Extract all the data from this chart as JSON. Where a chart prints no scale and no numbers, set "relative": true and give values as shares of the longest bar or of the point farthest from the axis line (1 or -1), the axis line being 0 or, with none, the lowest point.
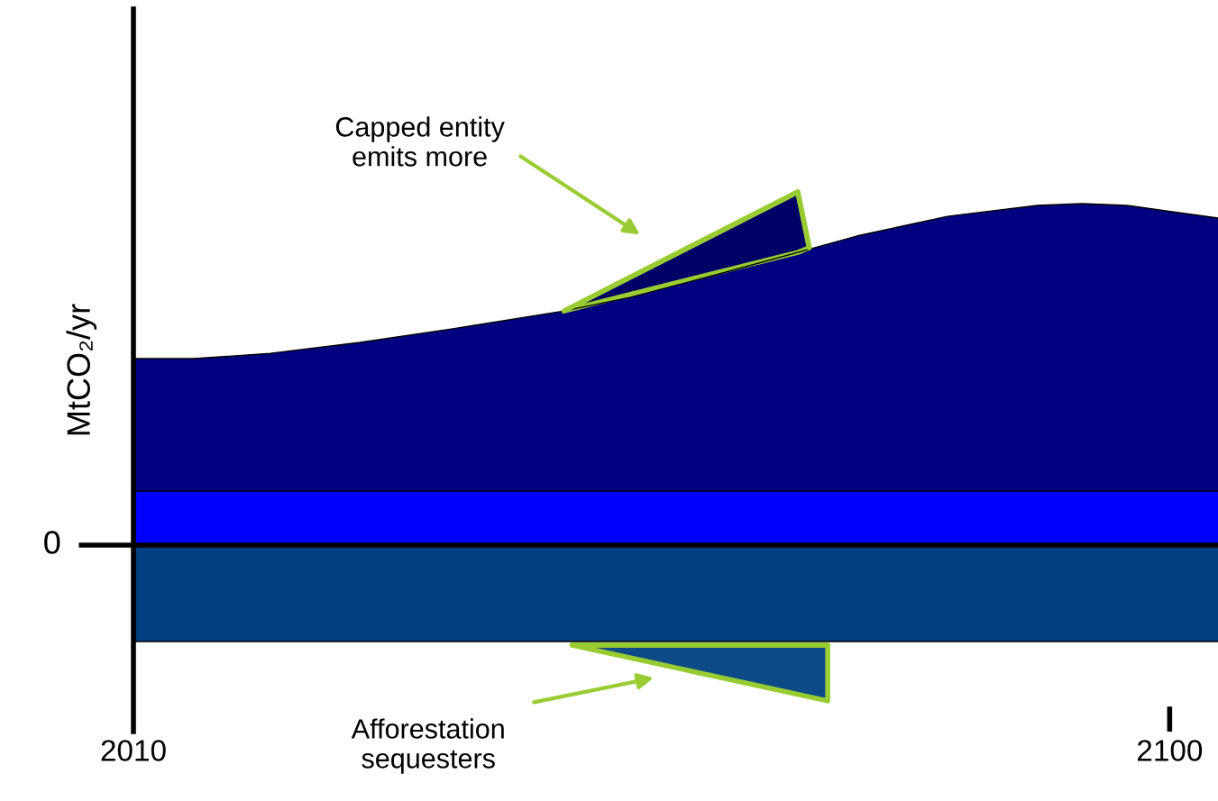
{
  "chart_data": {
    "type": "area",
    "relative": true,
    "ylabel": "MtCO₂/yr",
    "x": [
      2010,
      2015.2,
      2021.9,
      2029.7,
      2037.6,
      2047.4,
      2053.2,
      2061.1,
      2067.7,
      2072.8,
      2080.7,
      2088.5,
      2092.4,
      2096.3,
      2100.2,
      2104.2
    ],
    "xlim": [
      2010,
      2104.2
    ],
    "xticks": [
      2010,
      2100
    ],
    "series": [
      {
        "color": "#000080",
        "values": [
          0.528,
          0.528,
          0.543,
          0.574,
          0.612,
          0.663,
          0.702,
          0.77,
          0.829,
          0.875,
          0.931,
          0.962,
          0.967,
          0.962,
          0.944,
          0.926
        ]
      },
      {
        "color": "#0000ff",
        "values": [
          0.153,
          0.153,
          0.153,
          0.153,
          0.153,
          0.153,
          0.153,
          0.153,
          0.153,
          0.153,
          0.153,
          0.153,
          0.153,
          0.153,
          0.153,
          0.153
        ]
      },
      {
        "color": "#004080",
        "values": [
          -0.273,
          -0.273,
          -0.273,
          -0.273,
          -0.273,
          -0.273,
          -0.273,
          -0.273,
          -0.273,
          -0.273,
          -0.273,
          -0.273,
          -0.273,
          -0.273,
          -0.273,
          -0.273
        ]
      },
      {
        "type": "line",
        "color": "#99cc33",
        "x": [
          2047.4,
          2067.7,
          2068.7
        ],
        "values": [
          0.663,
          1.0,
          0.842
        ],
        "lower": [
          0.663,
          0.829,
          0.842
        ],
        "upper": [
          0.663,
          1.0,
          0.842
        ]
      },
      {
        "type": "line",
        "color": "#99cc33",
        "x": [
          2048.1,
          2070.3
        ],
        "values": [
          -0.283,
          -0.283
        ],
        "lower": [
          -0.283,
          -0.441
        ],
        "upper": [
          -0.283,
          -0.283
        ]
      }
    ],
    "ref_lines": [
      {
        "axis": "y",
        "value": 0,
        "label": "0"
      }
    ],
    "annotations": [
      "Capped entity\nemits more",
      "Afforestation\nsequesters"
    ]
  }
}
